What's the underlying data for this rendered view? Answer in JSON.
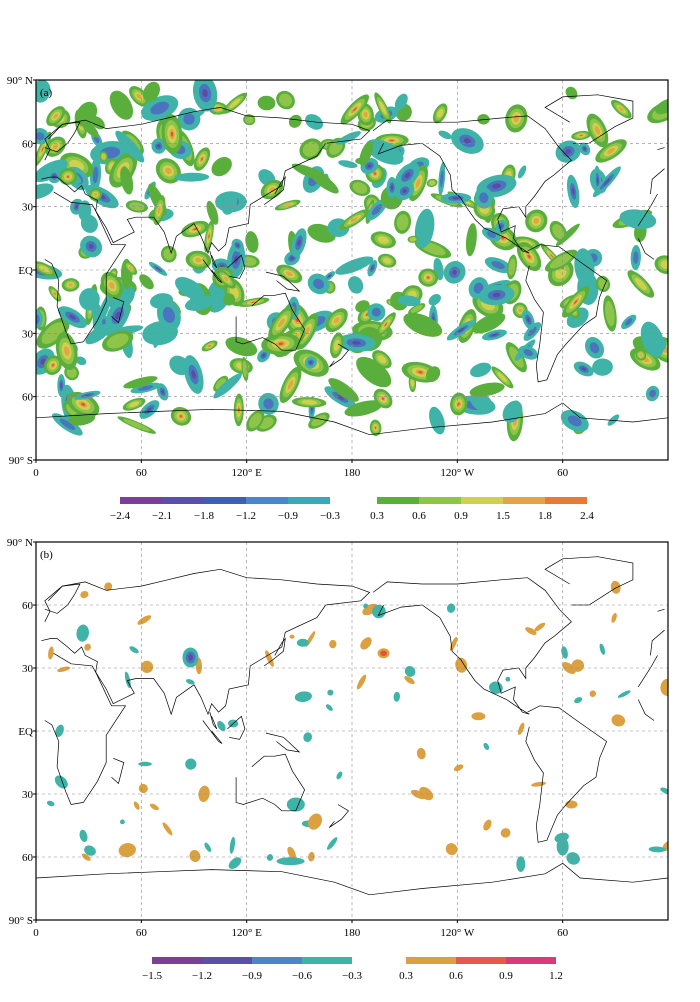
{
  "panels": [
    {
      "label": "(a)",
      "lat_labels": [
        "90° N",
        "60",
        "30",
        "EQ",
        "30",
        "60",
        "90° S"
      ],
      "lon_labels": [
        "0",
        "60",
        "120° E",
        "180",
        "120° W",
        "60"
      ],
      "colorbar": {
        "negative": {
          "labels": [
            "−2.4",
            "−2.1",
            "−1.8",
            "−1.2",
            "−0.9",
            "−0.3"
          ],
          "colors": [
            "#7b3f98",
            "#5b50a8",
            "#3f5fb0",
            "#4a86c8",
            "#3fa6b8"
          ]
        },
        "positive": {
          "labels": [
            "0.3",
            "0.6",
            "0.9",
            "1.5",
            "1.8",
            "2.4"
          ],
          "colors": [
            "#5aae3c",
            "#8ec449",
            "#cfd04c",
            "#e0a544",
            "#e57a3a"
          ]
        }
      }
    },
    {
      "label": "(b)",
      "lat_labels": [
        "90° N",
        "60",
        "30",
        "EQ",
        "30",
        "60",
        "90° S"
      ],
      "lon_labels": [
        "0",
        "60",
        "120° E",
        "180",
        "120° W",
        "60"
      ],
      "colorbar": {
        "negative": {
          "labels": [
            "−1.5",
            "−1.2",
            "−0.9",
            "−0.6",
            "−0.3"
          ],
          "colors": [
            "#7b3f98",
            "#5b50a8",
            "#4a86c8",
            "#3fb3a8"
          ]
        },
        "positive": {
          "labels": [
            "0.3",
            "0.6",
            "0.9",
            "1.2"
          ],
          "colors": [
            "#dba040",
            "#e55a4a",
            "#d93a7a"
          ]
        }
      }
    }
  ],
  "colors": {
    "frame": "#000000",
    "grid": "#8a8a8a",
    "coast": "#000000",
    "teal": "#3fb3a8",
    "green": "#5aae3c",
    "lightgreen": "#8ec449",
    "yellow": "#cfd04c",
    "orange": "#e0a544",
    "red": "#e0533a",
    "blue": "#4a74c0",
    "purple": "#5b4ca0",
    "gold": "#dba040"
  }
}
